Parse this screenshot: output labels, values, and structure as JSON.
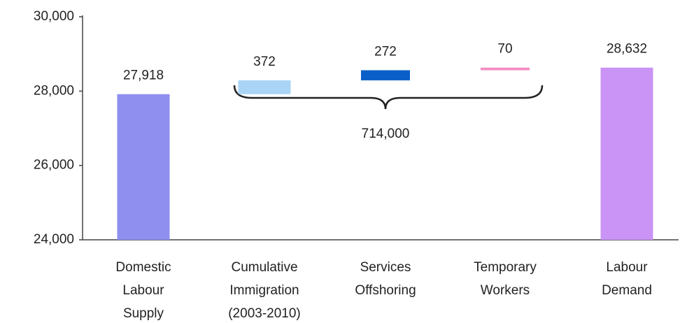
{
  "chart_data": {
    "type": "waterfall",
    "categories": [
      [
        "Domestic",
        "Labour",
        "Supply"
      ],
      [
        "Cumulative",
        "Immigration",
        "(2003-2010)"
      ],
      [
        "Services",
        "Offshoring"
      ],
      [
        "Temporary",
        "Workers"
      ],
      [
        "Labour",
        "Demand"
      ]
    ],
    "values": [
      27918,
      372,
      272,
      70,
      28632
    ],
    "value_labels": [
      "27,918",
      "372",
      "272",
      "70",
      "28,632"
    ],
    "colors": [
      "#8f8ff0",
      "#a9d4f5",
      "#0a5fc8",
      "#f28cc0",
      "#c994f5"
    ],
    "annotation": "714,000",
    "ylim": [
      24000,
      30000
    ],
    "yticks": [
      {
        "value": 24000,
        "label": "24,000"
      },
      {
        "value": 26000,
        "label": "26,000"
      },
      {
        "value": 28000,
        "label": "28,000"
      },
      {
        "value": 30000,
        "label": "30,000"
      }
    ]
  }
}
